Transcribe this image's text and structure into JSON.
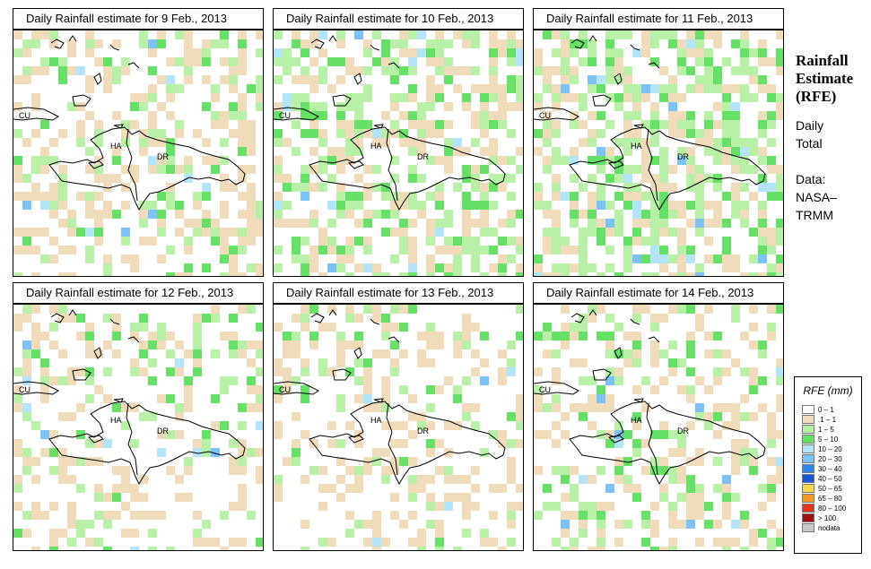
{
  "panels": [
    {
      "title": "Daily Rainfall estimate for  9 Feb., 2013",
      "seed": 9,
      "density": 0.42,
      "wet": 0.45
    },
    {
      "title": "Daily Rainfall estimate for  10 Feb., 2013",
      "seed": 10,
      "density": 0.55,
      "wet": 0.62
    },
    {
      "title": "Daily Rainfall estimate for  11 Feb., 2013",
      "seed": 11,
      "density": 0.6,
      "wet": 0.66
    },
    {
      "title": "Daily Rainfall estimate for  12 Feb., 2013",
      "seed": 12,
      "density": 0.36,
      "wet": 0.5
    },
    {
      "title": "Daily Rainfall estimate for  13 Feb., 2013",
      "seed": 13,
      "density": 0.34,
      "wet": 0.4
    },
    {
      "title": "Daily Rainfall estimate for  14 Feb., 2013",
      "seed": 14,
      "density": 0.38,
      "wet": 0.46
    }
  ],
  "map_labels": {
    "cu": "CU",
    "ha": "HA",
    "dr": "DR"
  },
  "side": {
    "title_line1": "Rainfall",
    "title_line2": "Estimate",
    "title_line3": "(RFE)",
    "line_daily": "Daily",
    "line_total": "Total",
    "line_data": "Data:",
    "line_nasa": "NASA–",
    "line_trmm": "TRMM"
  },
  "legend": {
    "title": "RFE (mm)",
    "items": [
      {
        "label": "0 – 1",
        "color": "#ffffff"
      },
      {
        "label": ".1 – 1",
        "color": "#f0dcba"
      },
      {
        "label": "1 – 5",
        "color": "#b9f0a8"
      },
      {
        "label": "5 – 10",
        "color": "#66e066"
      },
      {
        "label": "10 – 20",
        "color": "#b4e4f8"
      },
      {
        "label": "20 – 30",
        "color": "#7cc2f6"
      },
      {
        "label": "30 – 40",
        "color": "#2e86ee"
      },
      {
        "label": "40 – 50",
        "color": "#1a55d8"
      },
      {
        "label": "50 – 65",
        "color": "#f8d648"
      },
      {
        "label": "65 – 80",
        "color": "#f49a1e"
      },
      {
        "label": "80 – 100",
        "color": "#e6321e"
      },
      {
        "label": "> 100",
        "color": "#a01010"
      },
      {
        "label": "nodata",
        "color": "#c8c8c8"
      }
    ]
  }
}
